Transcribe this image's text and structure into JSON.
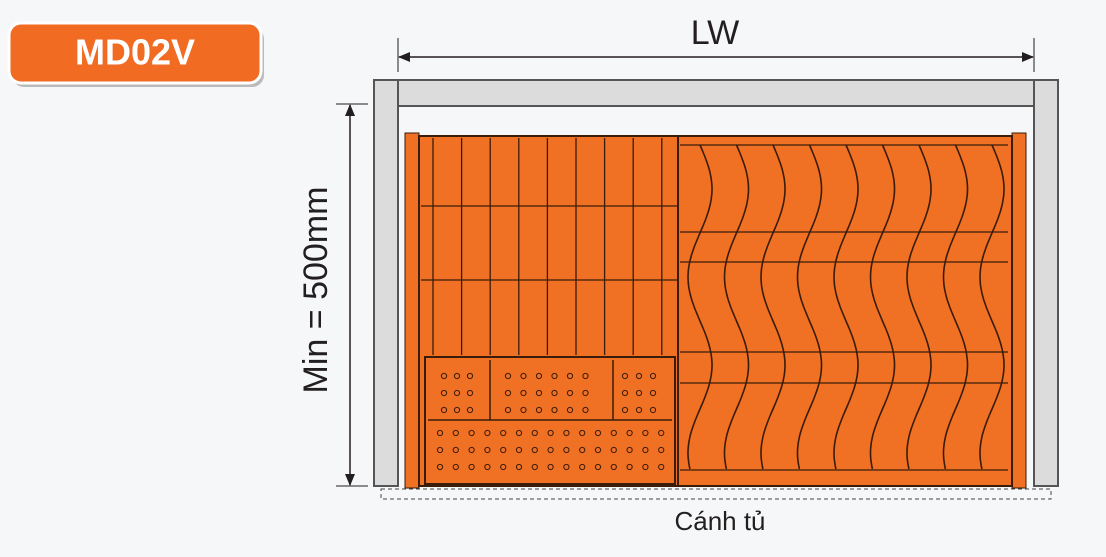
{
  "badge": "MD02V",
  "dimensions": {
    "width": "LW",
    "height": "Min = 500mm"
  },
  "door_label": "Cánh tủ"
}
